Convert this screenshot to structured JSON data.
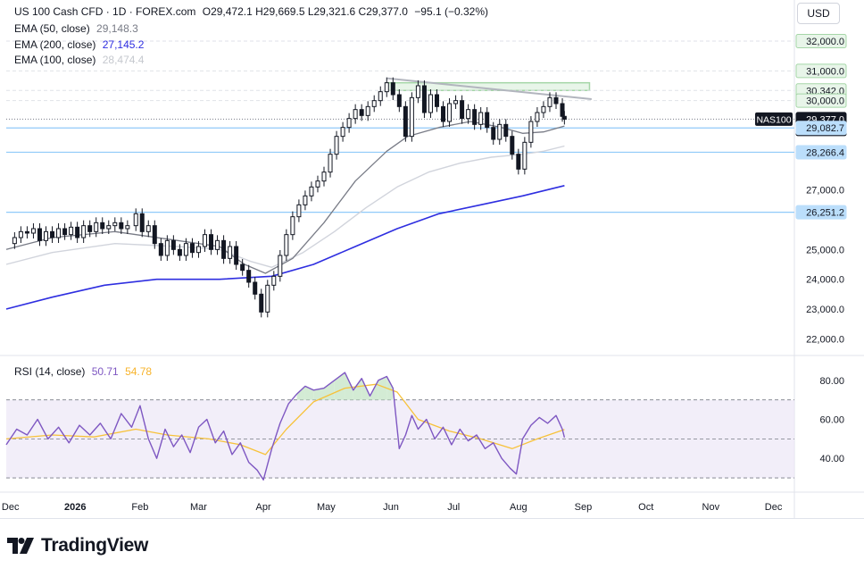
{
  "header": {
    "symbol": "US 100 Cash CFD · 1D · FOREX.com",
    "ohlc": "O29,472.1  H29,669.5  L29,321.6  C29,377.0",
    "change": "−95.1 (−0.32%)",
    "ema50_label": "EMA (50, close)",
    "ema50_value": "29,148.3",
    "ema200_label": "EMA (200, close)",
    "ema200_value": "27,145.2",
    "ema100_label": "EMA (100, close)",
    "ema100_value": "28,474.4",
    "rsi_label": "RSI (14, close)",
    "rsi_value": "50.71",
    "rsi_ma_value": "54.78",
    "currency": "USD"
  },
  "branding": {
    "name": "TradingView"
  },
  "colors": {
    "up": "#131722",
    "down": "#131722",
    "ema50": "#787b86",
    "ema100": "#d1d4dc",
    "ema200": "#2e2ee0",
    "rsi": "#7e57c2",
    "rsi_ma": "#f7c23a",
    "rsi_band": "#ede7f6",
    "level_line": "#90caf9",
    "resistance_box": "#a5d6a7",
    "trendline": "#b2b5be"
  },
  "chart_data": {
    "type": "candlestick",
    "price_axis": {
      "ylim": [
        21500,
        32600
      ],
      "ticks": [
        22000,
        23000,
        24000,
        25000,
        26000,
        27000,
        28000,
        29000,
        30000,
        31000,
        32000
      ],
      "tick_labels": [
        "22,000.0",
        "23,000.0",
        "24,000.0",
        "25,000.0",
        "",
        "27,000.0",
        "",
        "",
        "",
        "",
        ""
      ],
      "badges": [
        {
          "label": "32,000.0",
          "value": 32000,
          "style": "green"
        },
        {
          "label": "31,000.0",
          "value": 31000,
          "style": "green"
        },
        {
          "label": "30,342.0",
          "value": 30342,
          "style": "green"
        },
        {
          "label": "30,000.0",
          "value": 30000,
          "style": "green"
        },
        {
          "label": "29,377.0",
          "value": 29377,
          "style": "dark",
          "sub": "06:53:10"
        },
        {
          "label": "29,082.7",
          "value": 29082.7,
          "style": "blue"
        },
        {
          "label": "28,266.4",
          "value": 28266.4,
          "style": "blue"
        },
        {
          "label": "26,251.2",
          "value": 26251.2,
          "style": "blue"
        }
      ],
      "last_price_symbol": "NAS100"
    },
    "rsi_axis": {
      "ylim": [
        25,
        90
      ],
      "ticks": [
        40,
        60,
        80
      ],
      "tick_labels": [
        "40.00",
        "60.00",
        "80.00"
      ],
      "bands": [
        30,
        50,
        70
      ]
    },
    "x_axis": {
      "labels": [
        {
          "label": "Dec",
          "day": 0
        },
        {
          "label": "2026",
          "day": 31
        },
        {
          "label": "Feb",
          "day": 62
        },
        {
          "label": "Mar",
          "day": 90
        },
        {
          "label": "Apr",
          "day": 121
        },
        {
          "label": "May",
          "day": 151
        },
        {
          "label": "Jun",
          "day": 182
        },
        {
          "label": "Jul",
          "day": 212
        },
        {
          "label": "Aug",
          "day": 243
        },
        {
          "label": "Sep",
          "day": 274
        },
        {
          "label": "Oct",
          "day": 304
        },
        {
          "label": "Nov",
          "day": 335
        },
        {
          "label": "Dec",
          "day": 365
        }
      ],
      "xlim": [
        -2,
        375
      ]
    },
    "price_series": [
      {
        "day": -2,
        "close": 25200
      },
      {
        "day": 2,
        "close": 25400
      },
      {
        "day": 5,
        "close": 25600
      },
      {
        "day": 8,
        "close": 25550
      },
      {
        "day": 11,
        "close": 25700
      },
      {
        "day": 14,
        "close": 25300
      },
      {
        "day": 17,
        "close": 25600
      },
      {
        "day": 20,
        "close": 25400
      },
      {
        "day": 23,
        "close": 25700
      },
      {
        "day": 26,
        "close": 25500
      },
      {
        "day": 29,
        "close": 25750
      },
      {
        "day": 32,
        "close": 25400
      },
      {
        "day": 35,
        "close": 25800
      },
      {
        "day": 38,
        "close": 25600
      },
      {
        "day": 41,
        "close": 25900
      },
      {
        "day": 44,
        "close": 25700
      },
      {
        "day": 47,
        "close": 25800
      },
      {
        "day": 50,
        "close": 25900
      },
      {
        "day": 53,
        "close": 25700
      },
      {
        "day": 56,
        "close": 25800
      },
      {
        "day": 60,
        "close": 26200
      },
      {
        "day": 63,
        "close": 25600
      },
      {
        "day": 66,
        "close": 25800
      },
      {
        "day": 69,
        "close": 25200
      },
      {
        "day": 72,
        "close": 24800
      },
      {
        "day": 75,
        "close": 25300
      },
      {
        "day": 78,
        "close": 25000
      },
      {
        "day": 81,
        "close": 24800
      },
      {
        "day": 84,
        "close": 25200
      },
      {
        "day": 87,
        "close": 24900
      },
      {
        "day": 90,
        "close": 25100
      },
      {
        "day": 93,
        "close": 25500
      },
      {
        "day": 96,
        "close": 25000
      },
      {
        "day": 99,
        "close": 25300
      },
      {
        "day": 102,
        "close": 24700
      },
      {
        "day": 105,
        "close": 25100
      },
      {
        "day": 108,
        "close": 24500
      },
      {
        "day": 111,
        "close": 24300
      },
      {
        "day": 114,
        "close": 23900
      },
      {
        "day": 117,
        "close": 23500
      },
      {
        "day": 120,
        "close": 22900
      },
      {
        "day": 123,
        "close": 23800
      },
      {
        "day": 126,
        "close": 24100
      },
      {
        "day": 129,
        "close": 24800
      },
      {
        "day": 132,
        "close": 25500
      },
      {
        "day": 135,
        "close": 26100
      },
      {
        "day": 138,
        "close": 26500
      },
      {
        "day": 141,
        "close": 26800
      },
      {
        "day": 144,
        "close": 27100
      },
      {
        "day": 147,
        "close": 27300
      },
      {
        "day": 150,
        "close": 27600
      },
      {
        "day": 153,
        "close": 28200
      },
      {
        "day": 156,
        "close": 28800
      },
      {
        "day": 159,
        "close": 29100
      },
      {
        "day": 162,
        "close": 29400
      },
      {
        "day": 165,
        "close": 29700
      },
      {
        "day": 168,
        "close": 29500
      },
      {
        "day": 171,
        "close": 29800
      },
      {
        "day": 174,
        "close": 30000
      },
      {
        "day": 177,
        "close": 30300
      },
      {
        "day": 180,
        "close": 30600
      },
      {
        "day": 183,
        "close": 30200
      },
      {
        "day": 186,
        "close": 29800
      },
      {
        "day": 189,
        "close": 28800
      },
      {
        "day": 192,
        "close": 30100
      },
      {
        "day": 195,
        "close": 30500
      },
      {
        "day": 198,
        "close": 29600
      },
      {
        "day": 201,
        "close": 30200
      },
      {
        "day": 204,
        "close": 29800
      },
      {
        "day": 207,
        "close": 29300
      },
      {
        "day": 210,
        "close": 29900
      },
      {
        "day": 213,
        "close": 30000
      },
      {
        "day": 216,
        "close": 29400
      },
      {
        "day": 219,
        "close": 29700
      },
      {
        "day": 222,
        "close": 29200
      },
      {
        "day": 225,
        "close": 29600
      },
      {
        "day": 228,
        "close": 29100
      },
      {
        "day": 231,
        "close": 28700
      },
      {
        "day": 234,
        "close": 29200
      },
      {
        "day": 237,
        "close": 28800
      },
      {
        "day": 240,
        "close": 28200
      },
      {
        "day": 243,
        "close": 27700
      },
      {
        "day": 246,
        "close": 28600
      },
      {
        "day": 249,
        "close": 29300
      },
      {
        "day": 252,
        "close": 29600
      },
      {
        "day": 255,
        "close": 29800
      },
      {
        "day": 258,
        "close": 30100
      },
      {
        "day": 261,
        "close": 29900
      },
      {
        "day": 264,
        "close": 29472
      },
      {
        "day": 265,
        "close": 29377
      }
    ],
    "ema50": [
      {
        "day": -2,
        "value": 25000
      },
      {
        "day": 20,
        "value": 25400
      },
      {
        "day": 50,
        "value": 25600
      },
      {
        "day": 80,
        "value": 25300
      },
      {
        "day": 100,
        "value": 25100
      },
      {
        "day": 112,
        "value": 24500
      },
      {
        "day": 122,
        "value": 24200
      },
      {
        "day": 135,
        "value": 24700
      },
      {
        "day": 150,
        "value": 25900
      },
      {
        "day": 165,
        "value": 27300
      },
      {
        "day": 180,
        "value": 28300
      },
      {
        "day": 190,
        "value": 28800
      },
      {
        "day": 205,
        "value": 29100
      },
      {
        "day": 220,
        "value": 29300
      },
      {
        "day": 235,
        "value": 29100
      },
      {
        "day": 245,
        "value": 28900
      },
      {
        "day": 255,
        "value": 28950
      },
      {
        "day": 265,
        "value": 29148.3
      }
    ],
    "ema100": [
      {
        "day": -2,
        "value": 24500
      },
      {
        "day": 20,
        "value": 24900
      },
      {
        "day": 50,
        "value": 25200
      },
      {
        "day": 80,
        "value": 25100
      },
      {
        "day": 100,
        "value": 25000
      },
      {
        "day": 115,
        "value": 24600
      },
      {
        "day": 125,
        "value": 24400
      },
      {
        "day": 140,
        "value": 24900
      },
      {
        "day": 155,
        "value": 25600
      },
      {
        "day": 170,
        "value": 26400
      },
      {
        "day": 185,
        "value": 27100
      },
      {
        "day": 200,
        "value": 27600
      },
      {
        "day": 215,
        "value": 27900
      },
      {
        "day": 230,
        "value": 28100
      },
      {
        "day": 245,
        "value": 28200
      },
      {
        "day": 255,
        "value": 28300
      },
      {
        "day": 265,
        "value": 28474.4
      }
    ],
    "ema200": [
      {
        "day": -2,
        "value": 23000
      },
      {
        "day": 20,
        "value": 23400
      },
      {
        "day": 45,
        "value": 23800
      },
      {
        "day": 70,
        "value": 24000
      },
      {
        "day": 100,
        "value": 24000
      },
      {
        "day": 125,
        "value": 24100
      },
      {
        "day": 145,
        "value": 24500
      },
      {
        "day": 165,
        "value": 25100
      },
      {
        "day": 185,
        "value": 25700
      },
      {
        "day": 205,
        "value": 26200
      },
      {
        "day": 225,
        "value": 26500
      },
      {
        "day": 245,
        "value": 26800
      },
      {
        "day": 265,
        "value": 27145.2
      }
    ],
    "levels": [
      {
        "value": 29082.7,
        "style": "blue"
      },
      {
        "value": 28266.4,
        "style": "blue"
      },
      {
        "value": 26251.2,
        "style": "blue"
      }
    ],
    "resistance_zone": {
      "from_day": 180,
      "to_day": 277,
      "low": 30342,
      "high": 30600
    },
    "trendline": {
      "start": {
        "day": 180,
        "value": 30750
      },
      "end": {
        "day": 278,
        "value": 30050
      }
    },
    "rsi_series": [
      {
        "day": -2,
        "value": 47
      },
      {
        "day": 3,
        "value": 55
      },
      {
        "day": 8,
        "value": 52
      },
      {
        "day": 13,
        "value": 60
      },
      {
        "day": 18,
        "value": 50
      },
      {
        "day": 23,
        "value": 56
      },
      {
        "day": 28,
        "value": 48
      },
      {
        "day": 33,
        "value": 57
      },
      {
        "day": 38,
        "value": 52
      },
      {
        "day": 43,
        "value": 58
      },
      {
        "day": 48,
        "value": 50
      },
      {
        "day": 53,
        "value": 63
      },
      {
        "day": 58,
        "value": 56
      },
      {
        "day": 62,
        "value": 67
      },
      {
        "day": 66,
        "value": 50
      },
      {
        "day": 70,
        "value": 40
      },
      {
        "day": 74,
        "value": 55
      },
      {
        "day": 78,
        "value": 46
      },
      {
        "day": 82,
        "value": 52
      },
      {
        "day": 86,
        "value": 43
      },
      {
        "day": 90,
        "value": 56
      },
      {
        "day": 94,
        "value": 60
      },
      {
        "day": 98,
        "value": 48
      },
      {
        "day": 102,
        "value": 54
      },
      {
        "day": 106,
        "value": 42
      },
      {
        "day": 110,
        "value": 48
      },
      {
        "day": 114,
        "value": 38
      },
      {
        "day": 118,
        "value": 34
      },
      {
        "day": 121,
        "value": 29
      },
      {
        "day": 125,
        "value": 45
      },
      {
        "day": 129,
        "value": 58
      },
      {
        "day": 133,
        "value": 68
      },
      {
        "day": 137,
        "value": 73
      },
      {
        "day": 141,
        "value": 77
      },
      {
        "day": 145,
        "value": 75
      },
      {
        "day": 150,
        "value": 76
      },
      {
        "day": 155,
        "value": 80
      },
      {
        "day": 160,
        "value": 84
      },
      {
        "day": 164,
        "value": 75
      },
      {
        "day": 168,
        "value": 81
      },
      {
        "day": 172,
        "value": 72
      },
      {
        "day": 176,
        "value": 80
      },
      {
        "day": 180,
        "value": 82
      },
      {
        "day": 183,
        "value": 76
      },
      {
        "day": 186,
        "value": 45
      },
      {
        "day": 189,
        "value": 52
      },
      {
        "day": 192,
        "value": 62
      },
      {
        "day": 195,
        "value": 55
      },
      {
        "day": 199,
        "value": 60
      },
      {
        "day": 203,
        "value": 50
      },
      {
        "day": 207,
        "value": 56
      },
      {
        "day": 211,
        "value": 47
      },
      {
        "day": 215,
        "value": 55
      },
      {
        "day": 219,
        "value": 49
      },
      {
        "day": 223,
        "value": 52
      },
      {
        "day": 227,
        "value": 45
      },
      {
        "day": 231,
        "value": 48
      },
      {
        "day": 235,
        "value": 40
      },
      {
        "day": 239,
        "value": 35
      },
      {
        "day": 242,
        "value": 32
      },
      {
        "day": 245,
        "value": 50
      },
      {
        "day": 249,
        "value": 57
      },
      {
        "day": 253,
        "value": 61
      },
      {
        "day": 257,
        "value": 58
      },
      {
        "day": 261,
        "value": 62
      },
      {
        "day": 264,
        "value": 55
      },
      {
        "day": 265,
        "value": 50.71
      }
    ],
    "rsi_ma_series": [
      {
        "day": -2,
        "value": 50
      },
      {
        "day": 20,
        "value": 52
      },
      {
        "day": 40,
        "value": 51
      },
      {
        "day": 60,
        "value": 55
      },
      {
        "day": 75,
        "value": 52
      },
      {
        "day": 95,
        "value": 50
      },
      {
        "day": 110,
        "value": 47
      },
      {
        "day": 122,
        "value": 42
      },
      {
        "day": 132,
        "value": 55
      },
      {
        "day": 145,
        "value": 69
      },
      {
        "day": 160,
        "value": 76
      },
      {
        "day": 175,
        "value": 78
      },
      {
        "day": 185,
        "value": 74
      },
      {
        "day": 195,
        "value": 60
      },
      {
        "day": 210,
        "value": 54
      },
      {
        "day": 225,
        "value": 50
      },
      {
        "day": 240,
        "value": 45
      },
      {
        "day": 252,
        "value": 50
      },
      {
        "day": 265,
        "value": 54.78
      }
    ]
  }
}
